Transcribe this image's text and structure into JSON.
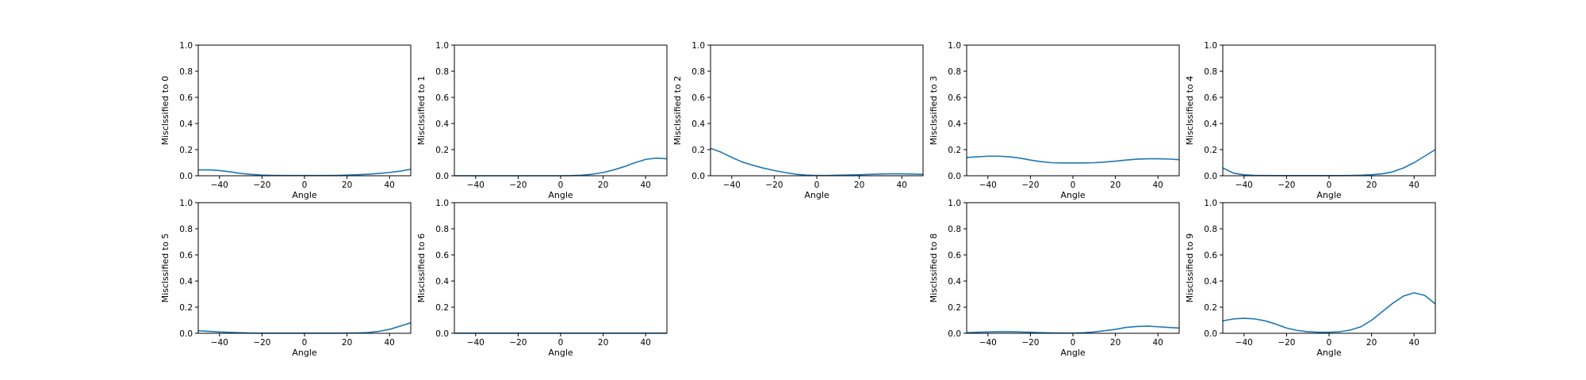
{
  "figure": {
    "background": "#ffffff",
    "line_color": "#1f77b4"
  },
  "chart_data": [
    {
      "type": "line",
      "title": "",
      "xlabel": "Angle",
      "ylabel": "Misclssified to 0",
      "xlim": [
        -50,
        50
      ],
      "ylim": [
        0,
        1
      ],
      "xticks": [
        -40,
        -20,
        0,
        20,
        40
      ],
      "yticks": [
        0,
        0.2,
        0.4,
        0.6,
        0.8,
        1
      ],
      "series": [
        {
          "x": [
            -50,
            -45,
            -40,
            -35,
            -30,
            -25,
            -20,
            -15,
            -10,
            -5,
            0,
            5,
            10,
            15,
            20,
            25,
            30,
            35,
            40,
            45,
            50
          ],
          "values": [
            0.045,
            0.045,
            0.04,
            0.03,
            0.018,
            0.01,
            0.005,
            0.003,
            0.002,
            0.002,
            0.002,
            0.002,
            0.002,
            0.003,
            0.005,
            0.008,
            0.012,
            0.018,
            0.025,
            0.035,
            0.05
          ]
        }
      ]
    },
    {
      "type": "line",
      "title": "",
      "xlabel": "Angle",
      "ylabel": "Misclssified to 1",
      "xlim": [
        -50,
        50
      ],
      "ylim": [
        0,
        1
      ],
      "xticks": [
        -40,
        -20,
        0,
        20,
        40
      ],
      "yticks": [
        0,
        0.2,
        0.4,
        0.6,
        0.8,
        1
      ],
      "series": [
        {
          "x": [
            -50,
            -45,
            -40,
            -35,
            -30,
            -25,
            -20,
            -15,
            -10,
            -5,
            0,
            5,
            10,
            15,
            20,
            25,
            30,
            35,
            40,
            45,
            50
          ],
          "values": [
            0,
            0,
            0,
            0,
            0,
            0,
            0,
            0,
            0,
            0,
            0,
            0.001,
            0.004,
            0.012,
            0.025,
            0.045,
            0.07,
            0.1,
            0.125,
            0.135,
            0.13
          ]
        }
      ]
    },
    {
      "type": "line",
      "title": "",
      "xlabel": "Angle",
      "ylabel": "Misclssified to 2",
      "xlim": [
        -50,
        50
      ],
      "ylim": [
        0,
        1
      ],
      "xticks": [
        -40,
        -20,
        0,
        20,
        40
      ],
      "yticks": [
        0,
        0.2,
        0.4,
        0.6,
        0.8,
        1
      ],
      "series": [
        {
          "x": [
            -50,
            -45,
            -40,
            -35,
            -30,
            -25,
            -20,
            -15,
            -10,
            -5,
            0,
            5,
            10,
            15,
            20,
            25,
            30,
            35,
            40,
            45,
            50
          ],
          "values": [
            0.21,
            0.18,
            0.14,
            0.105,
            0.08,
            0.058,
            0.04,
            0.025,
            0.012,
            0.005,
            0.002,
            0.002,
            0.004,
            0.006,
            0.008,
            0.01,
            0.013,
            0.015,
            0.015,
            0.013,
            0.01
          ]
        }
      ]
    },
    {
      "type": "line",
      "title": "",
      "xlabel": "Angle",
      "ylabel": "Misclssified to 3",
      "xlim": [
        -50,
        50
      ],
      "ylim": [
        0,
        1
      ],
      "xticks": [
        -40,
        -20,
        0,
        20,
        40
      ],
      "yticks": [
        0,
        0.2,
        0.4,
        0.6,
        0.8,
        1
      ],
      "series": [
        {
          "x": [
            -50,
            -45,
            -40,
            -35,
            -30,
            -25,
            -20,
            -15,
            -10,
            -5,
            0,
            5,
            10,
            15,
            20,
            25,
            30,
            35,
            40,
            45,
            50
          ],
          "values": [
            0.14,
            0.145,
            0.15,
            0.15,
            0.145,
            0.135,
            0.12,
            0.108,
            0.1,
            0.098,
            0.098,
            0.098,
            0.1,
            0.105,
            0.112,
            0.12,
            0.127,
            0.13,
            0.13,
            0.128,
            0.123
          ]
        }
      ]
    },
    {
      "type": "line",
      "title": "",
      "xlabel": "Angle",
      "ylabel": "Misclssified to 4",
      "xlim": [
        -50,
        50
      ],
      "ylim": [
        0,
        1
      ],
      "xticks": [
        -40,
        -20,
        0,
        20,
        40
      ],
      "yticks": [
        0,
        0.2,
        0.4,
        0.6,
        0.8,
        1
      ],
      "series": [
        {
          "x": [
            -50,
            -45,
            -40,
            -35,
            -30,
            -25,
            -20,
            -15,
            -10,
            -5,
            0,
            5,
            10,
            15,
            20,
            25,
            30,
            35,
            40,
            45,
            50
          ],
          "values": [
            0.06,
            0.02,
            0.007,
            0.003,
            0.002,
            0.001,
            0.001,
            0.001,
            0.001,
            0.001,
            0.001,
            0.001,
            0.002,
            0.004,
            0.008,
            0.015,
            0.03,
            0.06,
            0.1,
            0.15,
            0.2
          ]
        }
      ]
    },
    {
      "type": "line",
      "title": "",
      "xlabel": "Angle",
      "ylabel": "Misclssified to 5",
      "xlim": [
        -50,
        50
      ],
      "ylim": [
        0,
        1
      ],
      "xticks": [
        -40,
        -20,
        0,
        20,
        40
      ],
      "yticks": [
        0,
        0.2,
        0.4,
        0.6,
        0.8,
        1
      ],
      "series": [
        {
          "x": [
            -50,
            -45,
            -40,
            -35,
            -30,
            -25,
            -20,
            -15,
            -10,
            -5,
            0,
            5,
            10,
            15,
            20,
            25,
            30,
            35,
            40,
            45,
            50
          ],
          "values": [
            0.02,
            0.015,
            0.01,
            0.007,
            0.004,
            0.002,
            0.001,
            0.001,
            0.001,
            0.001,
            0.001,
            0.001,
            0.001,
            0.001,
            0.002,
            0.003,
            0.006,
            0.015,
            0.03,
            0.055,
            0.08
          ]
        }
      ]
    },
    {
      "type": "line",
      "title": "",
      "xlabel": "Angle",
      "ylabel": "Misclssified to 6",
      "xlim": [
        -50,
        50
      ],
      "ylim": [
        0,
        1
      ],
      "xticks": [
        -40,
        -20,
        0,
        20,
        40
      ],
      "yticks": [
        0,
        0.2,
        0.4,
        0.6,
        0.8,
        1
      ],
      "series": [
        {
          "x": [
            -50,
            -45,
            -40,
            -35,
            -30,
            -25,
            -20,
            -15,
            -10,
            -5,
            0,
            5,
            10,
            15,
            20,
            25,
            30,
            35,
            40,
            45,
            50
          ],
          "values": [
            0.001,
            0.001,
            0.001,
            0.001,
            0.001,
            0.001,
            0.001,
            0.001,
            0.001,
            0.001,
            0.001,
            0.001,
            0.001,
            0.001,
            0.001,
            0.001,
            0.001,
            0.001,
            0.001,
            0.001,
            0.001
          ]
        }
      ]
    },
    null,
    {
      "type": "line",
      "title": "",
      "xlabel": "Angle",
      "ylabel": "Misclssified to 8",
      "xlim": [
        -50,
        50
      ],
      "ylim": [
        0,
        1
      ],
      "xticks": [
        -40,
        -20,
        0,
        20,
        40
      ],
      "yticks": [
        0,
        0.2,
        0.4,
        0.6,
        0.8,
        1
      ],
      "series": [
        {
          "x": [
            -50,
            -45,
            -40,
            -35,
            -30,
            -25,
            -20,
            -15,
            -10,
            -5,
            0,
            5,
            10,
            15,
            20,
            25,
            30,
            35,
            40,
            45,
            50
          ],
          "values": [
            0.005,
            0.008,
            0.01,
            0.012,
            0.012,
            0.01,
            0.008,
            0.005,
            0.003,
            0.002,
            0.002,
            0.004,
            0.01,
            0.02,
            0.03,
            0.045,
            0.052,
            0.055,
            0.05,
            0.045,
            0.04
          ]
        }
      ]
    },
    {
      "type": "line",
      "title": "",
      "xlabel": "Angle",
      "ylabel": "Misclssified to 9",
      "xlim": [
        -50,
        50
      ],
      "ylim": [
        0,
        1
      ],
      "xticks": [
        -40,
        -20,
        0,
        20,
        40
      ],
      "yticks": [
        0,
        0.2,
        0.4,
        0.6,
        0.8,
        1
      ],
      "series": [
        {
          "x": [
            -50,
            -45,
            -40,
            -35,
            -30,
            -25,
            -20,
            -15,
            -10,
            -5,
            0,
            5,
            10,
            15,
            20,
            25,
            30,
            35,
            40,
            45,
            50
          ],
          "values": [
            0.095,
            0.11,
            0.115,
            0.11,
            0.095,
            0.07,
            0.04,
            0.022,
            0.012,
            0.008,
            0.008,
            0.012,
            0.025,
            0.05,
            0.1,
            0.165,
            0.23,
            0.285,
            0.31,
            0.29,
            0.225
          ]
        }
      ]
    }
  ]
}
